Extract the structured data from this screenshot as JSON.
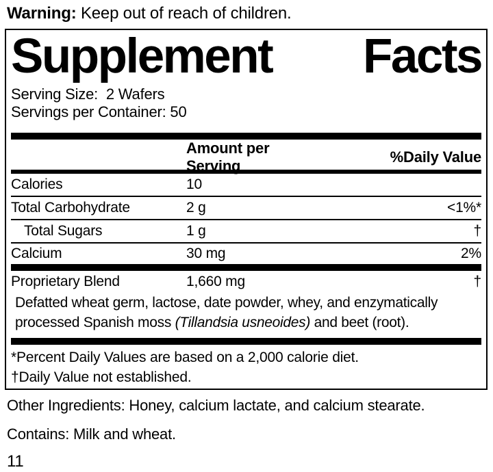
{
  "warning": {
    "label": "Warning:",
    "text": " Keep out of reach of children."
  },
  "label": {
    "title_left": "Supplement",
    "title_right": "Facts",
    "serving_size": "Serving Size:  2 Wafers",
    "servings_per_container": "Servings per Container: 50",
    "columns": {
      "amount": "Amount per Serving",
      "daily_value": "%Daily Value"
    },
    "rows": [
      {
        "name": "Calories",
        "amount": "10",
        "dv": ""
      },
      {
        "name": "Total Carbohydrate",
        "amount": "2 g",
        "dv": "<1%*"
      },
      {
        "name": "Total Sugars",
        "amount": "1 g",
        "dv": "†"
      },
      {
        "name": "Calcium",
        "amount": "30 mg",
        "dv": "2%"
      }
    ],
    "blend": {
      "name": "Proprietary Blend",
      "amount": "1,660 mg",
      "dv": "†",
      "description_line1": "Defatted wheat germ, lactose, date powder, whey, and enzymatically",
      "description_line2_pre": "processed Spanish moss ",
      "description_line2_italic": "(Tillandsia usneoides)",
      "description_line2_post": " and beet (root)."
    },
    "footnotes": [
      "*Percent Daily Values are based on a 2,000 calorie diet.",
      "†Daily Value not established."
    ]
  },
  "other_ingredients": "Other Ingredients: Honey, calcium lactate, and calcium stearate.",
  "contains": "Contains: Milk and wheat.",
  "page_number": "11",
  "colors": {
    "text": "#000000",
    "background": "#ffffff",
    "rule": "#000000"
  }
}
